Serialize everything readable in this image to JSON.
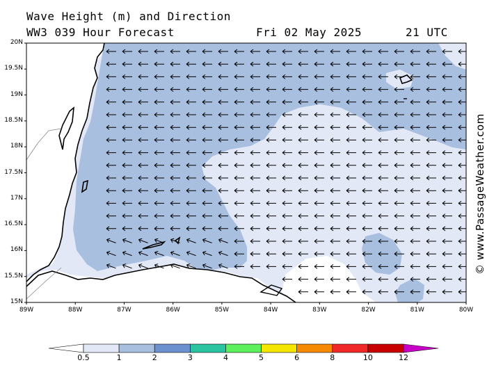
{
  "header": {
    "line1": "Wave Height (m) and Direction",
    "model": "WW3 039 Hour Forecast",
    "date": "Fri 02 May 2025",
    "time": "21 UTC"
  },
  "map": {
    "y_ticks": [
      "20N",
      "19.5N",
      "19N",
      "18.5N",
      "18N",
      "17.5N",
      "17N",
      "16.5N",
      "16N",
      "15.5N",
      "15N"
    ],
    "x_ticks": [
      "89W",
      "88W",
      "87W",
      "86W",
      "85W",
      "84W",
      "83W",
      "82W",
      "81W",
      "80W"
    ],
    "arrow_direction": "west",
    "colors": {
      "land": "#ffffff",
      "band_05_1": "#e2e8f6",
      "band_1_2": "#a8bfe0"
    }
  },
  "colorbar": {
    "labels": [
      "0.5",
      "1",
      "2",
      "3",
      "4",
      "5",
      "6",
      "8",
      "10",
      "12"
    ],
    "colors": [
      "#ffffff",
      "#e2e8f6",
      "#a8bfe0",
      "#6c91cf",
      "#2bc4a0",
      "#5cf05c",
      "#f5e600",
      "#f58a00",
      "#f02828",
      "#c80000",
      "#c800c8"
    ]
  },
  "credit": "© www.PassageWeather.com"
}
